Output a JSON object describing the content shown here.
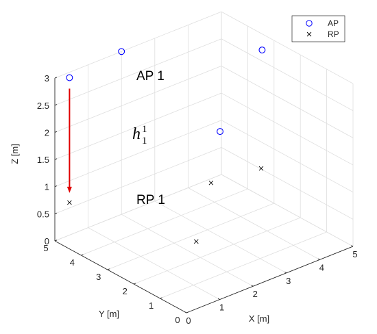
{
  "chart_data": {
    "type": "scatter3d",
    "xlabel": "X [m]",
    "ylabel": "Y [m]",
    "zlabel": "Z [m]",
    "xlim": [
      0,
      5
    ],
    "ylim": [
      0,
      5
    ],
    "zlim": [
      0,
      3
    ],
    "xticks": [
      "0",
      "1",
      "2",
      "3",
      "4",
      "5"
    ],
    "yticks": [
      "0",
      "1",
      "2",
      "3",
      "4",
      "5"
    ],
    "zticks": [
      "0",
      "0.5",
      "1",
      "1.5",
      "2",
      "2.5",
      "3"
    ],
    "grid": true,
    "legend_position": "top-right",
    "series": [
      {
        "name": "AP",
        "marker": "circle",
        "color": "#0000ff",
        "points": [
          {
            "x": 0.44,
            "y": 5.0,
            "z": 2.9
          },
          {
            "x": 2.0,
            "y": 5.0,
            "z": 3.0
          },
          {
            "x": 4.8,
            "y": 3.2,
            "z": 2.82
          },
          {
            "x": 2.55,
            "y": 1.95,
            "z": 2.2
          }
        ]
      },
      {
        "name": "RP",
        "marker": "x",
        "color": "#000000",
        "points": [
          {
            "x": 0.44,
            "y": 5.0,
            "z": 0.6
          },
          {
            "x": 4.85,
            "y": 3.3,
            "z": 0.6
          },
          {
            "x": 3.52,
            "y": 3.52,
            "z": 0.6
          },
          {
            "x": 1.4,
            "y": 1.4,
            "z": 0.6
          }
        ]
      }
    ],
    "annotations": {
      "ap_label": "AP 1",
      "rp_label": "RP 1",
      "arrow_label_main": "h",
      "arrow_label_sup": "1",
      "arrow_label_sub": "1",
      "arrow_color": "#e00000"
    }
  }
}
